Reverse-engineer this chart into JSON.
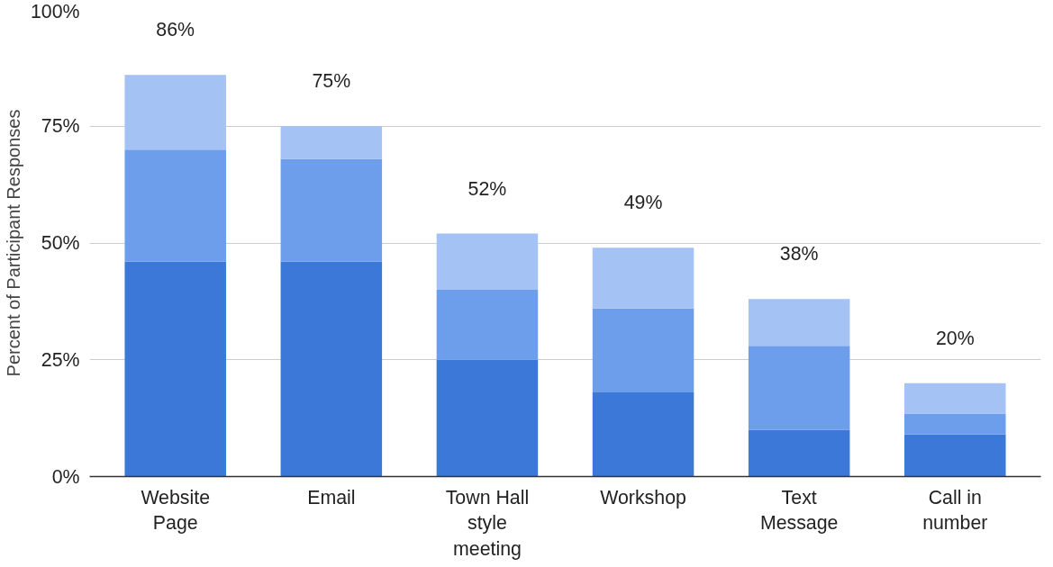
{
  "chart_data": {
    "type": "bar",
    "stacked": true,
    "ylabel": "Percent of Participant Responses",
    "categories": [
      "Website Page",
      "Email",
      "Town Hall style meeting",
      "Workshop",
      "Text Message",
      "Call in number"
    ],
    "series": [
      {
        "color": "#3c78d8",
        "values": [
          46,
          46,
          25,
          18,
          10,
          9
        ]
      },
      {
        "color": "#6d9eeb",
        "values": [
          24,
          22,
          15,
          18,
          18,
          4.5
        ]
      },
      {
        "color": "#a4c2f4",
        "values": [
          16,
          7,
          12,
          13,
          10,
          6.5
        ]
      }
    ],
    "totals": [
      "86%",
      "75%",
      "52%",
      "49%",
      "38%",
      "20%"
    ],
    "ylim": [
      0,
      100
    ],
    "yticks": [
      {
        "value": 0,
        "label": "0%"
      },
      {
        "value": 25,
        "label": "25%"
      },
      {
        "value": 50,
        "label": "50%"
      },
      {
        "value": 75,
        "label": "75%"
      },
      {
        "value": 100,
        "label": "100%"
      }
    ],
    "grid": "y"
  }
}
